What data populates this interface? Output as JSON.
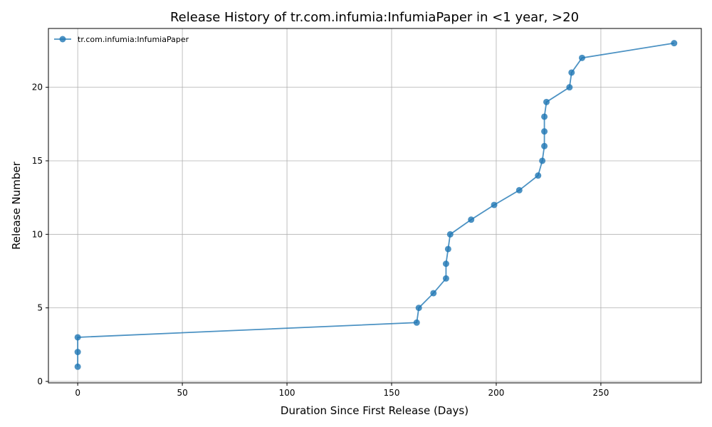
{
  "chart_data": {
    "type": "line",
    "title": "Release History of tr.com.infumia:InfumiaPaper in <1 year, >20",
    "xlabel": "Duration Since First Release (Days)",
    "ylabel": "Release Number",
    "xlim": [
      -14,
      298
    ],
    "ylim": [
      -0.1,
      24
    ],
    "xticks": [
      0,
      50,
      100,
      150,
      200,
      250
    ],
    "yticks": [
      0,
      5,
      10,
      15,
      20
    ],
    "grid": true,
    "legend_position": "top-left",
    "series": [
      {
        "name": "tr.com.infumia:InfumiaPaper",
        "color": "#1f77b4",
        "x": [
          0,
          0,
          0,
          162,
          163,
          170,
          176,
          176,
          177,
          178,
          188,
          199,
          211,
          220,
          222,
          223,
          223,
          223,
          224,
          235,
          236,
          241,
          285
        ],
        "y": [
          1,
          2,
          3,
          4,
          5,
          6,
          7,
          8,
          9,
          10,
          11,
          12,
          13,
          14,
          15,
          16,
          17,
          18,
          19,
          20,
          21,
          22,
          23
        ]
      }
    ]
  }
}
